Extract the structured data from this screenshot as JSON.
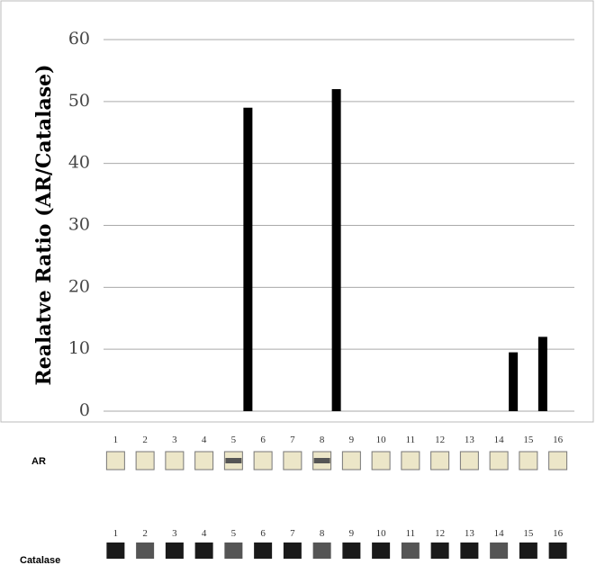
{
  "chart_data": {
    "type": "bar",
    "y_label": "Realatve Ratio (AR/Catalase)",
    "categories": [
      "1",
      "2",
      "3",
      "4",
      "5",
      "6",
      "7",
      "8",
      "9",
      "10",
      "11",
      "12",
      "13",
      "14",
      "15",
      "16"
    ],
    "values": [
      0,
      0,
      0,
      0,
      49,
      0,
      0,
      52,
      0,
      0,
      0,
      0,
      0,
      9.5,
      12,
      0
    ],
    "color": "#000000",
    "ylim": [
      0,
      60
    ],
    "yticks": [
      0,
      10,
      20,
      30,
      40,
      50,
      60
    ],
    "grid": true,
    "blot_rows": [
      "AR",
      "Catalase"
    ]
  }
}
